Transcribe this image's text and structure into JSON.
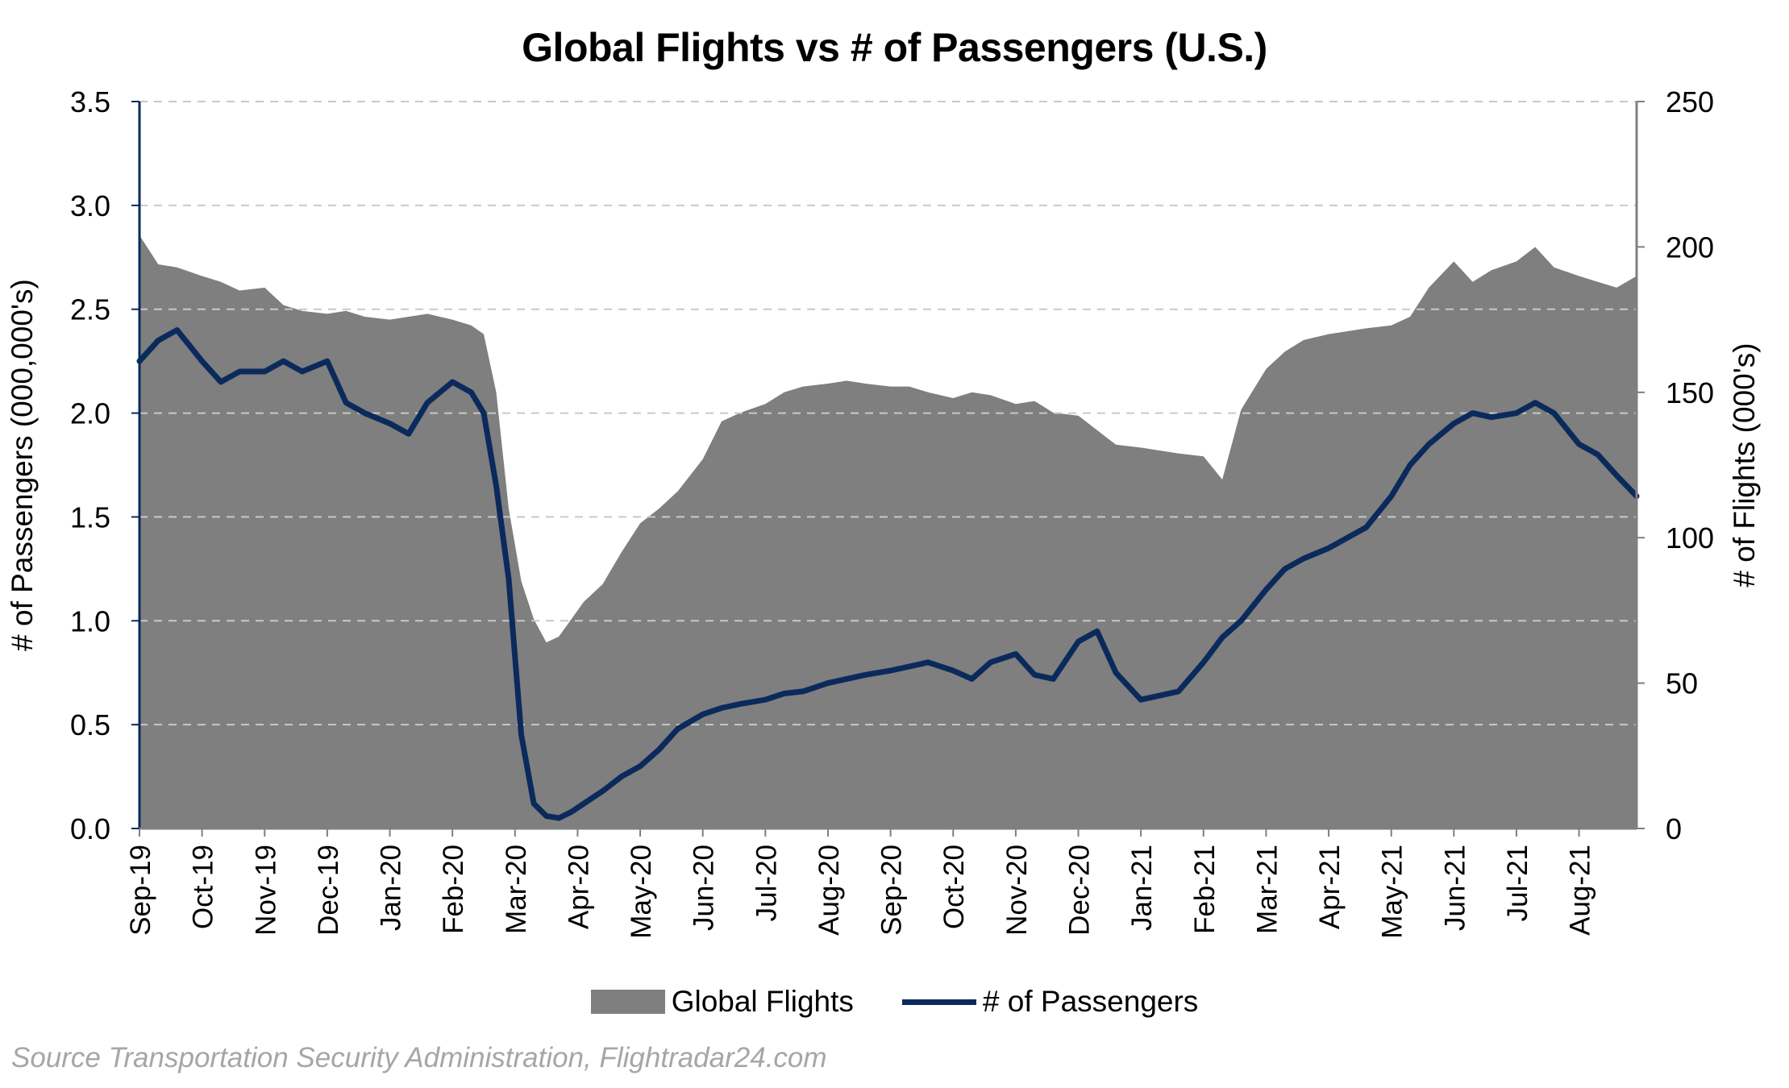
{
  "chart_data": {
    "type": "area",
    "title": "Global Flights vs # of Passengers (U.S.)",
    "source": "Source Transportation Security Administration, Flightradar24.com",
    "x_tick_labels": [
      "Sep-19",
      "Oct-19",
      "Nov-19",
      "Dec-19",
      "Jan-20",
      "Feb-20",
      "Mar-20",
      "Apr-20",
      "May-20",
      "Jun-20",
      "Jul-20",
      "Aug-20",
      "Sep-20",
      "Oct-20",
      "Nov-20",
      "Dec-20",
      "Jan-21",
      "Feb-21",
      "Mar-21",
      "Apr-21",
      "May-21",
      "Jun-21",
      "Jul-21",
      "Aug-21"
    ],
    "left_axis": {
      "label": "# of Passengers (000,000's)",
      "ylim": [
        0,
        3.5
      ],
      "ticks": [
        "0.0",
        "0.5",
        "1.0",
        "1.5",
        "2.0",
        "2.5",
        "3.0",
        "3.5"
      ]
    },
    "right_axis": {
      "label": "# of Flights (000's)",
      "ylim": [
        0,
        250
      ],
      "ticks": [
        "0",
        "50",
        "100",
        "150",
        "200",
        "250"
      ]
    },
    "grid": "horizontal dashed",
    "legend_position": "bottom",
    "series": [
      {
        "name": "Global Flights",
        "kind": "area",
        "axis": "right",
        "color": "#7f7f7f",
        "x_month_index": [
          0,
          0.3,
          0.6,
          1,
          1.3,
          1.6,
          2,
          2.3,
          2.6,
          3,
          3.3,
          3.6,
          4,
          4.3,
          4.6,
          5,
          5.3,
          5.5,
          5.7,
          5.9,
          6.1,
          6.3,
          6.5,
          6.7,
          6.9,
          7.1,
          7.4,
          7.7,
          8,
          8.3,
          8.6,
          9,
          9.3,
          9.6,
          10,
          10.3,
          10.6,
          11,
          11.3,
          11.6,
          12,
          12.3,
          12.6,
          13,
          13.3,
          13.6,
          14,
          14.3,
          14.6,
          15,
          15.3,
          15.6,
          16,
          16.3,
          16.6,
          17,
          17.3,
          17.6,
          18,
          18.3,
          18.6,
          19,
          19.3,
          19.6,
          20,
          20.3,
          20.6,
          21,
          21.3,
          21.6,
          22,
          22.3,
          22.6,
          23,
          23.3,
          23.6,
          23.92
        ],
        "values": [
          204,
          194,
          193,
          190,
          188,
          185,
          186,
          180,
          178,
          177,
          178,
          176,
          175,
          176,
          177,
          175,
          173,
          170,
          150,
          110,
          85,
          72,
          64,
          66,
          72,
          78,
          84,
          95,
          105,
          110,
          116,
          127,
          140,
          143,
          146,
          150,
          152,
          153,
          154,
          153,
          152,
          152,
          150,
          148,
          150,
          149,
          146,
          147,
          143,
          142,
          137,
          132,
          131,
          130,
          129,
          128,
          120,
          144,
          158,
          164,
          168,
          170,
          171,
          172,
          173,
          176,
          186,
          195,
          188,
          192,
          195,
          200,
          193,
          190,
          188,
          186,
          190
        ]
      },
      {
        "name": "# of Passengers",
        "kind": "line",
        "axis": "left",
        "color": "#0b2a5c",
        "x_month_index": [
          0,
          0.3,
          0.6,
          1,
          1.3,
          1.6,
          2,
          2.3,
          2.6,
          3,
          3.3,
          3.6,
          4,
          4.3,
          4.6,
          5,
          5.3,
          5.5,
          5.7,
          5.9,
          6.1,
          6.3,
          6.5,
          6.7,
          6.9,
          7.1,
          7.4,
          7.7,
          8,
          8.3,
          8.6,
          9,
          9.3,
          9.6,
          10,
          10.3,
          10.6,
          11,
          11.3,
          11.6,
          12,
          12.3,
          12.6,
          13,
          13.3,
          13.6,
          14,
          14.3,
          14.6,
          15,
          15.3,
          15.6,
          16,
          16.3,
          16.6,
          17,
          17.3,
          17.6,
          18,
          18.3,
          18.6,
          19,
          19.3,
          19.6,
          20,
          20.3,
          20.6,
          21,
          21.3,
          21.6,
          22,
          22.3,
          22.6,
          23,
          23.3,
          23.6,
          23.92
        ],
        "values": [
          2.25,
          2.35,
          2.4,
          2.25,
          2.15,
          2.2,
          2.2,
          2.25,
          2.2,
          2.25,
          2.05,
          2.0,
          1.95,
          1.9,
          2.05,
          2.15,
          2.1,
          2.0,
          1.65,
          1.2,
          0.45,
          0.12,
          0.06,
          0.05,
          0.08,
          0.12,
          0.18,
          0.25,
          0.3,
          0.38,
          0.48,
          0.55,
          0.58,
          0.6,
          0.62,
          0.65,
          0.66,
          0.7,
          0.72,
          0.74,
          0.76,
          0.78,
          0.8,
          0.76,
          0.72,
          0.8,
          0.84,
          0.74,
          0.72,
          0.9,
          0.95,
          0.75,
          0.62,
          0.64,
          0.66,
          0.8,
          0.92,
          1.0,
          1.15,
          1.25,
          1.3,
          1.35,
          1.4,
          1.45,
          1.6,
          1.75,
          1.85,
          1.95,
          2.0,
          1.98,
          2.0,
          2.05,
          2.0,
          1.85,
          1.8,
          1.7,
          1.6
        ]
      }
    ]
  }
}
